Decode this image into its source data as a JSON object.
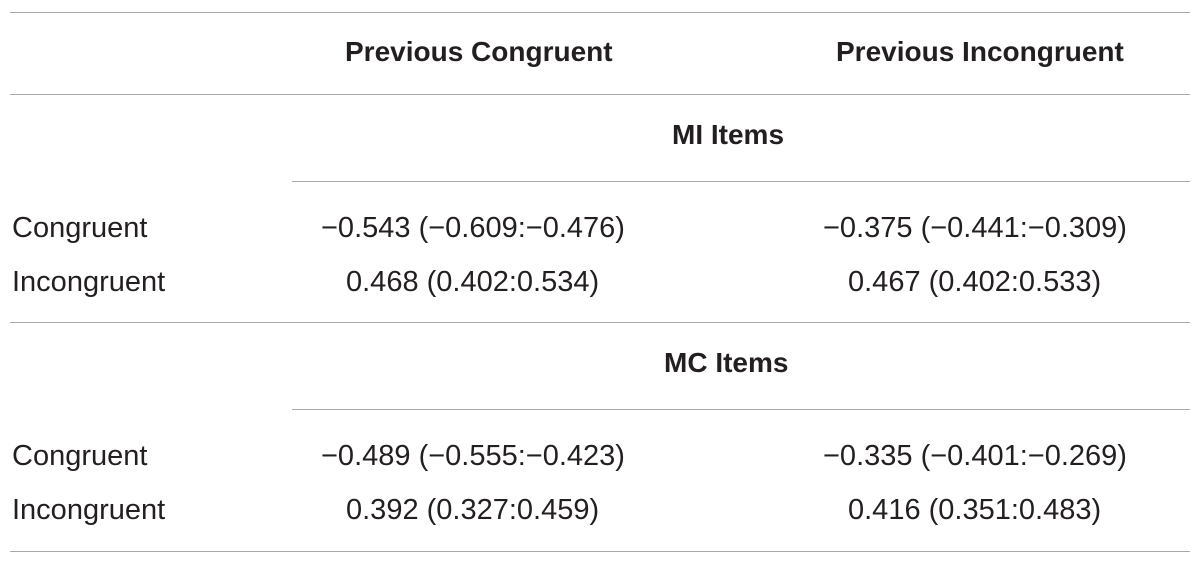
{
  "table": {
    "columns": [
      "",
      "Previous Congruent",
      "Previous Incongruent"
    ],
    "sections": [
      {
        "title": "MI Items",
        "rows": [
          {
            "label": "Congruent",
            "values": [
              "−0.543 (−0.609:−0.476)",
              "−0.375 (−0.441:−0.309)"
            ]
          },
          {
            "label": "Incongruent",
            "values": [
              "0.468 (0.402:0.534)",
              "0.467 (0.402:0.533)"
            ]
          }
        ]
      },
      {
        "title": "MC Items",
        "rows": [
          {
            "label": "Congruent",
            "values": [
              "−0.489 (−0.555:−0.423)",
              "−0.335 (−0.401:−0.269)"
            ]
          },
          {
            "label": "Incongruent",
            "values": [
              "0.392 (0.327:0.459)",
              "0.416 (0.351:0.483)"
            ]
          }
        ]
      }
    ]
  }
}
